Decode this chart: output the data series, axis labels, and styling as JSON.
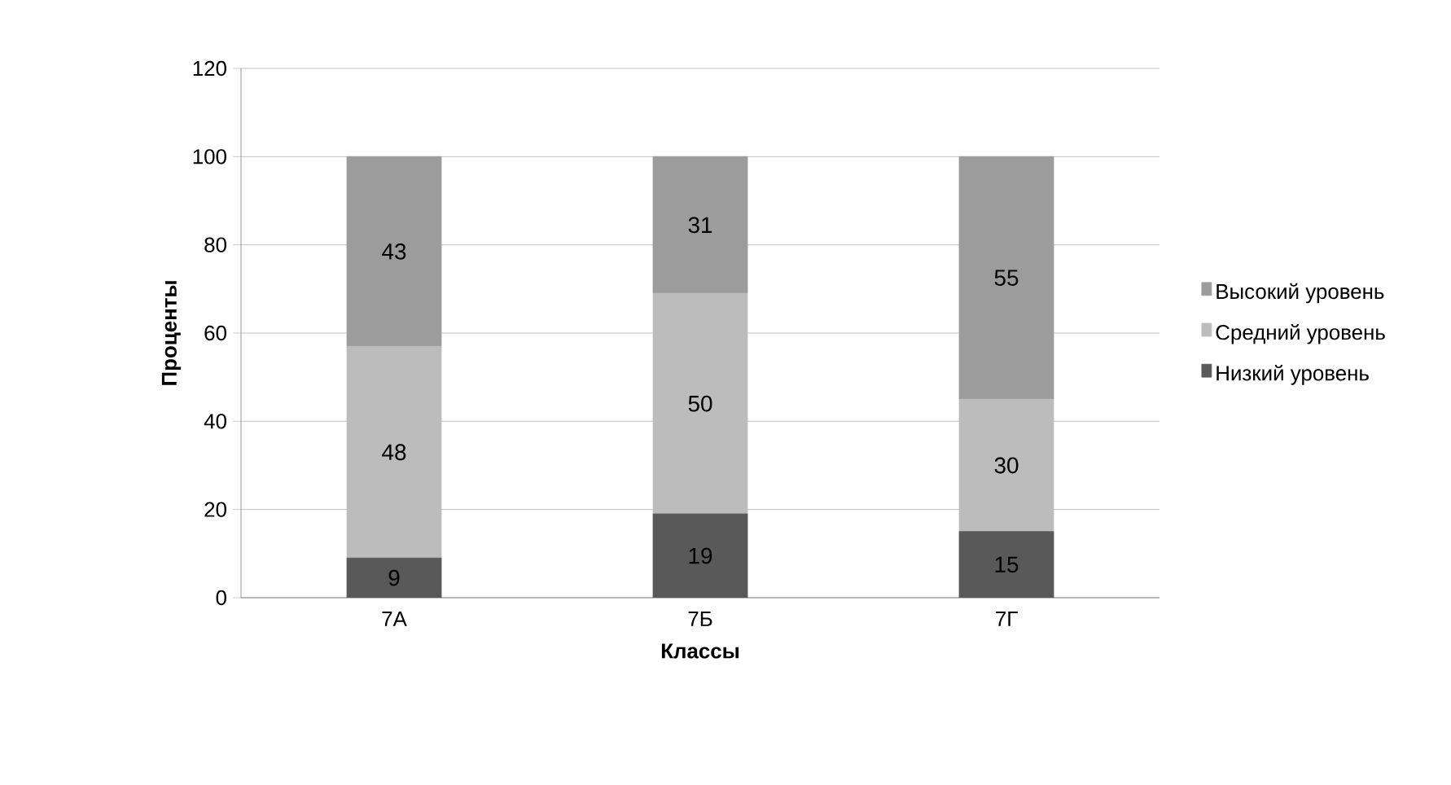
{
  "chart_data": {
    "type": "bar",
    "stacked": true,
    "xlabel": "Классы",
    "ylabel": "Проценты",
    "categories": [
      "7А",
      "7Б",
      "7Г"
    ],
    "series": [
      {
        "name": "Низкий уровень",
        "color": "#595959",
        "values": [
          9,
          19,
          15
        ]
      },
      {
        "name": "Средний уровень",
        "color": "#bcbcbc",
        "values": [
          48,
          50,
          30
        ]
      },
      {
        "name": "Высокий уровень",
        "color": "#9c9c9c",
        "values": [
          43,
          31,
          55
        ]
      }
    ],
    "ylim": [
      0,
      120
    ],
    "yticks": [
      0,
      20,
      40,
      60,
      80,
      100,
      120
    ],
    "grid": "y",
    "legend": "right",
    "data_labels": true
  }
}
